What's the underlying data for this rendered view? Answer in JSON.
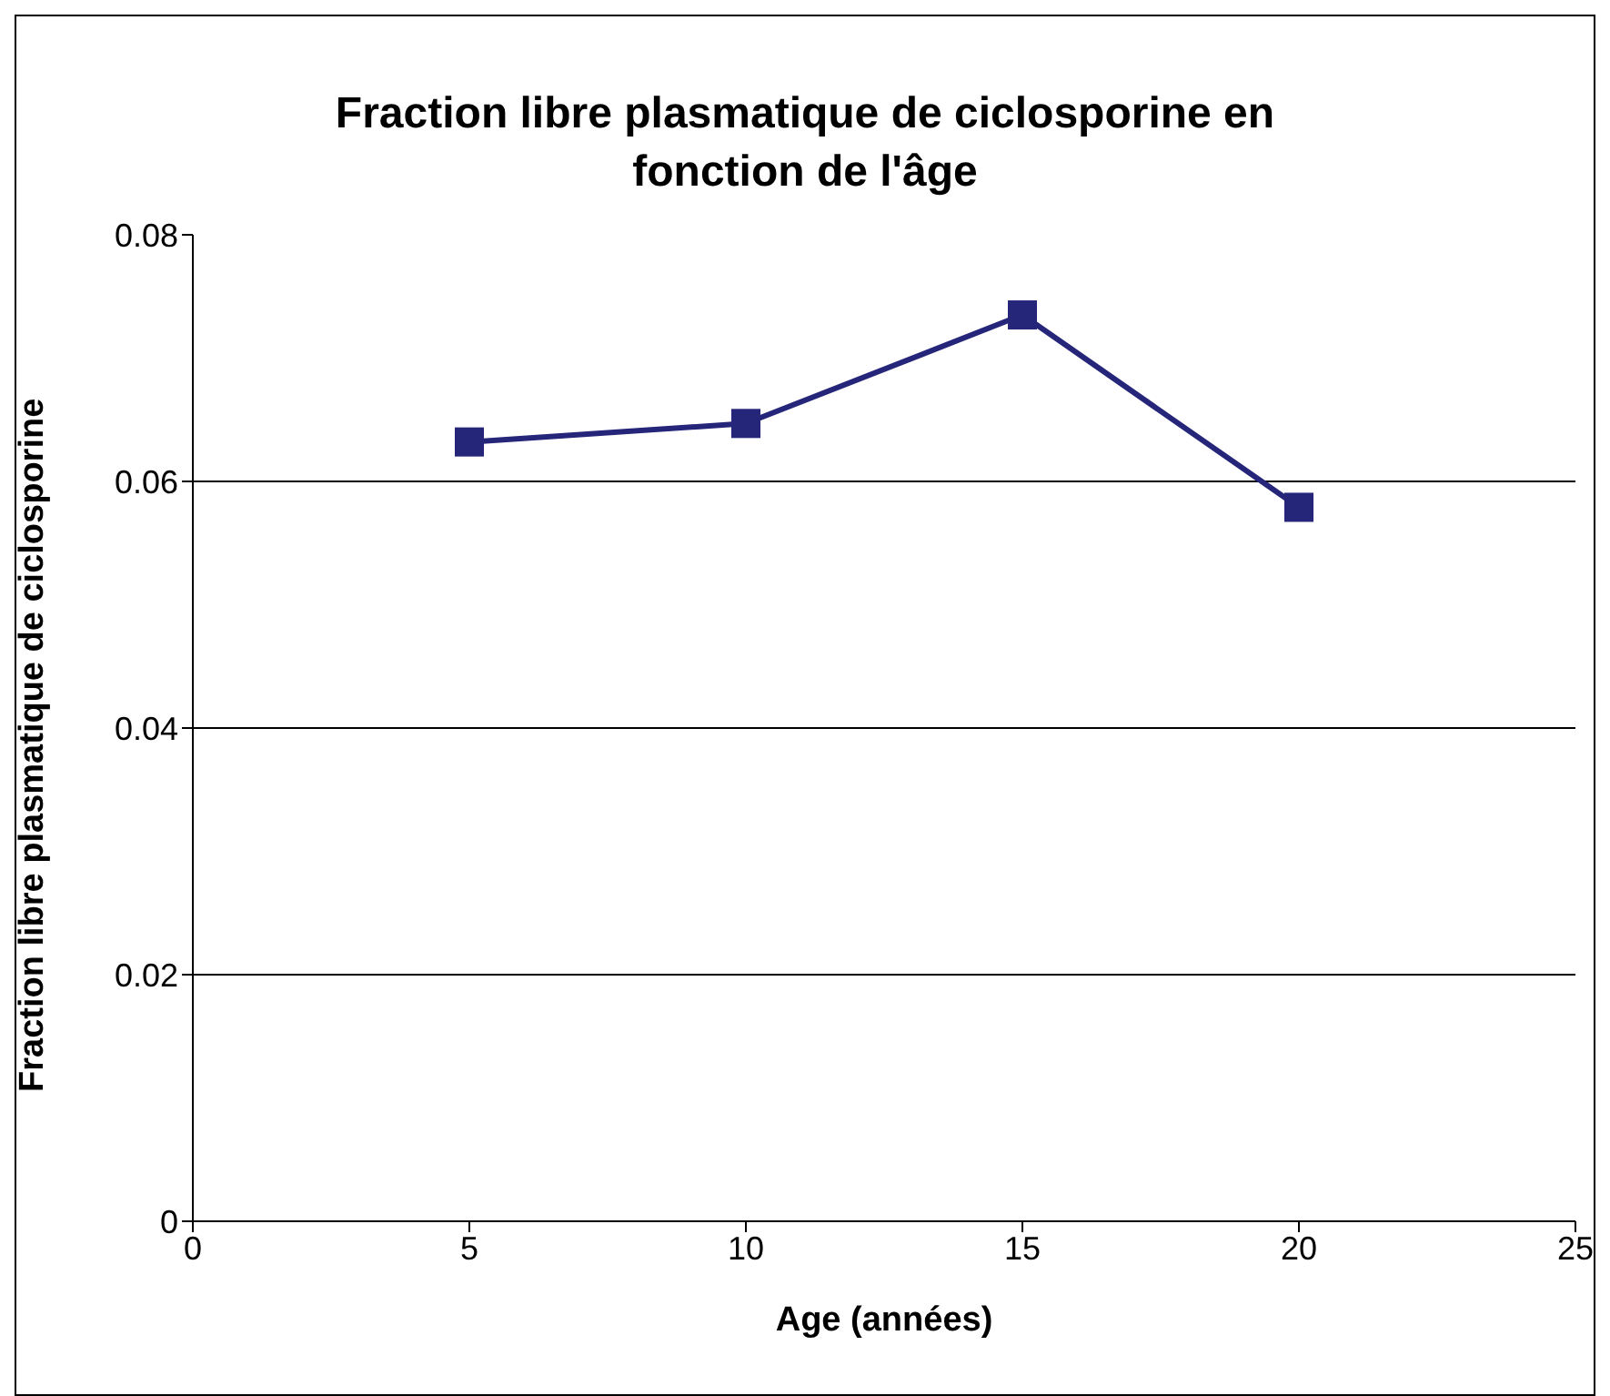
{
  "chart_data": {
    "type": "line",
    "title": "Fraction libre plasmatique de ciclosporine en fonction de l'âge",
    "xlabel": "Age (années)",
    "ylabel": "Fraction libre plasmatique de ciclosporine",
    "x": [
      5,
      10,
      15,
      20
    ],
    "series": [
      {
        "color": "#25257a",
        "values": [
          0.0632,
          0.0647,
          0.0735,
          0.0579
        ]
      }
    ],
    "xlim": [
      0,
      25
    ],
    "xticks": [
      0,
      5,
      10,
      15,
      20,
      25
    ],
    "ylim": [
      0,
      0.08
    ],
    "yticks": [
      {
        "value": 0,
        "label": "0"
      },
      {
        "value": 0.02,
        "label": "0.02"
      },
      {
        "value": 0.04,
        "label": "0.04"
      },
      {
        "value": 0.06,
        "label": "0.06"
      },
      {
        "value": 0.08,
        "label": "0.08"
      }
    ],
    "grid": "y",
    "legend": false,
    "marker": "square",
    "line_style": "solid"
  }
}
